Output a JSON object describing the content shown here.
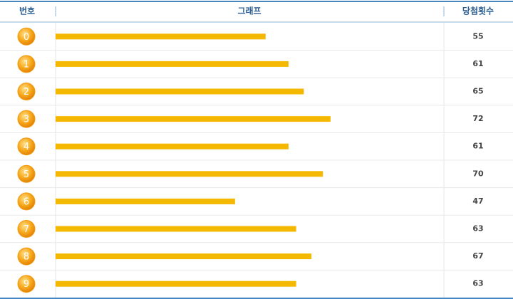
{
  "chart_data": {
    "type": "bar",
    "orientation": "horizontal",
    "columns": [
      "번호",
      "그래프",
      "당첨횟수"
    ],
    "categories": [
      "0",
      "1",
      "2",
      "3",
      "4",
      "5",
      "6",
      "7",
      "8",
      "9"
    ],
    "values": [
      55,
      61,
      65,
      72,
      61,
      70,
      47,
      63,
      67,
      63
    ],
    "color": "#f5b800",
    "ball_color": "#f29a12"
  }
}
